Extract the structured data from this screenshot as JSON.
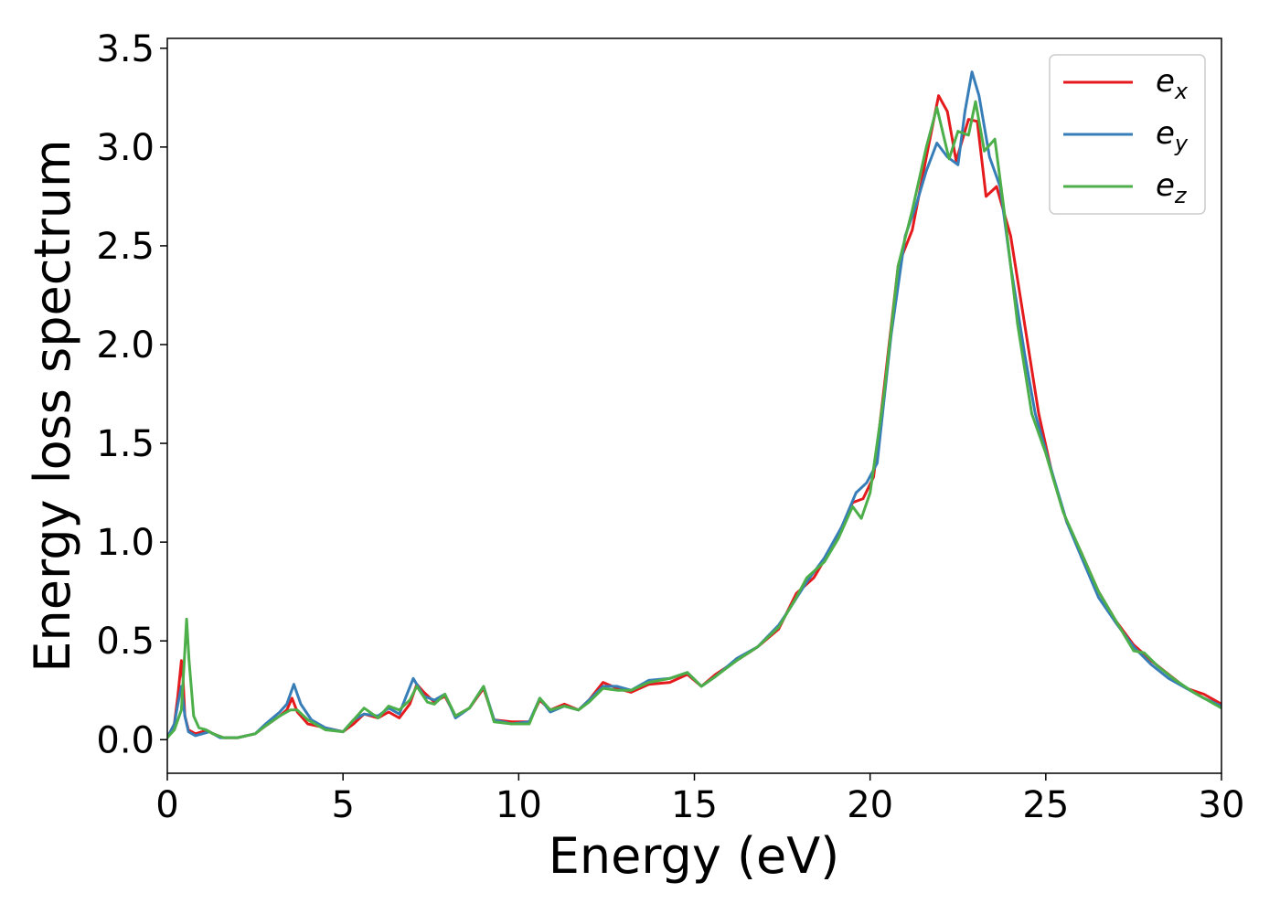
{
  "chart_data": {
    "type": "line",
    "xlabel": "Energy (eV)",
    "ylabel": "Energy loss spectrum",
    "xlim": [
      0,
      30
    ],
    "ylim": [
      -0.17,
      3.55
    ],
    "x_ticks": [
      0,
      5,
      10,
      15,
      20,
      25,
      30
    ],
    "y_ticks": [
      0.0,
      0.5,
      1.0,
      1.5,
      2.0,
      2.5,
      3.0,
      3.5
    ],
    "x_tick_labels": [
      "0",
      "5",
      "10",
      "15",
      "20",
      "25",
      "30"
    ],
    "y_tick_labels": [
      "0.0",
      "0.5",
      "1.0",
      "1.5",
      "2.0",
      "2.5",
      "3.0",
      "3.5"
    ],
    "grid": false,
    "legend_position": "top-right",
    "series": [
      {
        "name": "e_x",
        "label_main": "e",
        "label_sub": "x",
        "color": "#e41a1c",
        "points": [
          [
            0,
            0.01
          ],
          [
            0.2,
            0.08
          ],
          [
            0.3,
            0.22
          ],
          [
            0.4,
            0.4
          ],
          [
            0.45,
            0.3
          ],
          [
            0.5,
            0.12
          ],
          [
            0.6,
            0.05
          ],
          [
            0.8,
            0.03
          ],
          [
            1.0,
            0.04
          ],
          [
            1.1,
            0.05
          ],
          [
            1.3,
            0.03
          ],
          [
            1.6,
            0.01
          ],
          [
            2.0,
            0.01
          ],
          [
            2.5,
            0.03
          ],
          [
            2.8,
            0.07
          ],
          [
            3.2,
            0.12
          ],
          [
            3.4,
            0.15
          ],
          [
            3.55,
            0.21
          ],
          [
            3.7,
            0.14
          ],
          [
            4.0,
            0.08
          ],
          [
            4.5,
            0.06
          ],
          [
            5.0,
            0.04
          ],
          [
            5.3,
            0.08
          ],
          [
            5.6,
            0.13
          ],
          [
            6.0,
            0.11
          ],
          [
            6.3,
            0.14
          ],
          [
            6.6,
            0.11
          ],
          [
            6.9,
            0.18
          ],
          [
            7.1,
            0.28
          ],
          [
            7.3,
            0.24
          ],
          [
            7.6,
            0.19
          ],
          [
            7.9,
            0.22
          ],
          [
            8.2,
            0.12
          ],
          [
            8.6,
            0.16
          ],
          [
            9.0,
            0.26
          ],
          [
            9.3,
            0.1
          ],
          [
            9.8,
            0.09
          ],
          [
            10.3,
            0.09
          ],
          [
            10.6,
            0.2
          ],
          [
            10.9,
            0.15
          ],
          [
            11.3,
            0.18
          ],
          [
            11.7,
            0.15
          ],
          [
            12.0,
            0.2
          ],
          [
            12.4,
            0.29
          ],
          [
            12.8,
            0.26
          ],
          [
            13.2,
            0.24
          ],
          [
            13.7,
            0.28
          ],
          [
            14.3,
            0.29
          ],
          [
            14.8,
            0.33
          ],
          [
            15.2,
            0.27
          ],
          [
            15.6,
            0.33
          ],
          [
            16.2,
            0.4
          ],
          [
            16.8,
            0.47
          ],
          [
            17.4,
            0.56
          ],
          [
            17.9,
            0.74
          ],
          [
            18.4,
            0.82
          ],
          [
            19.0,
            1.0
          ],
          [
            19.5,
            1.2
          ],
          [
            19.8,
            1.22
          ],
          [
            20.1,
            1.33
          ],
          [
            20.4,
            1.78
          ],
          [
            20.8,
            2.4
          ],
          [
            21.2,
            2.58
          ],
          [
            21.6,
            2.95
          ],
          [
            21.95,
            3.26
          ],
          [
            22.2,
            3.18
          ],
          [
            22.45,
            2.93
          ],
          [
            22.8,
            3.14
          ],
          [
            23.05,
            3.13
          ],
          [
            23.3,
            2.75
          ],
          [
            23.6,
            2.8
          ],
          [
            24.0,
            2.55
          ],
          [
            24.4,
            2.1
          ],
          [
            24.8,
            1.65
          ],
          [
            25.2,
            1.33
          ],
          [
            25.6,
            1.1
          ],
          [
            26.0,
            0.95
          ],
          [
            26.5,
            0.75
          ],
          [
            27.0,
            0.6
          ],
          [
            27.5,
            0.48
          ],
          [
            28.0,
            0.4
          ],
          [
            28.5,
            0.33
          ],
          [
            29.0,
            0.26
          ],
          [
            29.5,
            0.23
          ],
          [
            30.0,
            0.18
          ]
        ]
      },
      {
        "name": "e_y",
        "label_main": "e",
        "label_sub": "y",
        "color": "#377eb8",
        "points": [
          [
            0,
            0.01
          ],
          [
            0.2,
            0.08
          ],
          [
            0.3,
            0.18
          ],
          [
            0.4,
            0.27
          ],
          [
            0.5,
            0.12
          ],
          [
            0.6,
            0.04
          ],
          [
            0.8,
            0.02
          ],
          [
            1.0,
            0.03
          ],
          [
            1.2,
            0.04
          ],
          [
            1.5,
            0.01
          ],
          [
            2.0,
            0.01
          ],
          [
            2.5,
            0.03
          ],
          [
            2.8,
            0.08
          ],
          [
            3.2,
            0.14
          ],
          [
            3.4,
            0.18
          ],
          [
            3.6,
            0.28
          ],
          [
            3.8,
            0.18
          ],
          [
            4.1,
            0.1
          ],
          [
            4.5,
            0.06
          ],
          [
            5.0,
            0.04
          ],
          [
            5.3,
            0.1
          ],
          [
            5.6,
            0.13
          ],
          [
            6.0,
            0.12
          ],
          [
            6.3,
            0.16
          ],
          [
            6.6,
            0.13
          ],
          [
            6.8,
            0.22
          ],
          [
            7.0,
            0.31
          ],
          [
            7.3,
            0.22
          ],
          [
            7.6,
            0.2
          ],
          [
            7.9,
            0.23
          ],
          [
            8.2,
            0.11
          ],
          [
            8.6,
            0.16
          ],
          [
            9.0,
            0.27
          ],
          [
            9.3,
            0.1
          ],
          [
            9.8,
            0.08
          ],
          [
            10.3,
            0.09
          ],
          [
            10.6,
            0.21
          ],
          [
            10.9,
            0.14
          ],
          [
            11.3,
            0.17
          ],
          [
            11.7,
            0.15
          ],
          [
            12.0,
            0.2
          ],
          [
            12.4,
            0.27
          ],
          [
            12.8,
            0.27
          ],
          [
            13.2,
            0.25
          ],
          [
            13.7,
            0.3
          ],
          [
            14.3,
            0.31
          ],
          [
            14.8,
            0.34
          ],
          [
            15.2,
            0.27
          ],
          [
            15.6,
            0.32
          ],
          [
            16.2,
            0.41
          ],
          [
            16.8,
            0.47
          ],
          [
            17.4,
            0.58
          ],
          [
            17.7,
            0.66
          ],
          [
            18.2,
            0.8
          ],
          [
            18.7,
            0.92
          ],
          [
            19.2,
            1.08
          ],
          [
            19.6,
            1.25
          ],
          [
            19.9,
            1.3
          ],
          [
            20.2,
            1.4
          ],
          [
            20.6,
            2.05
          ],
          [
            21.0,
            2.55
          ],
          [
            21.3,
            2.7
          ],
          [
            21.6,
            2.88
          ],
          [
            21.9,
            3.02
          ],
          [
            22.2,
            2.95
          ],
          [
            22.5,
            2.91
          ],
          [
            22.7,
            3.18
          ],
          [
            22.9,
            3.38
          ],
          [
            23.1,
            3.26
          ],
          [
            23.4,
            2.95
          ],
          [
            23.7,
            2.8
          ],
          [
            24.0,
            2.4
          ],
          [
            24.4,
            1.95
          ],
          [
            24.7,
            1.65
          ],
          [
            25.1,
            1.4
          ],
          [
            25.6,
            1.1
          ],
          [
            26.0,
            0.93
          ],
          [
            26.5,
            0.72
          ],
          [
            27.0,
            0.59
          ],
          [
            27.5,
            0.47
          ],
          [
            28.0,
            0.38
          ],
          [
            28.5,
            0.31
          ],
          [
            29.0,
            0.26
          ],
          [
            29.5,
            0.21
          ],
          [
            30.0,
            0.17
          ]
        ]
      },
      {
        "name": "e_z",
        "label_main": "e",
        "label_sub": "z",
        "color": "#4daf4a",
        "points": [
          [
            0,
            0.01
          ],
          [
            0.2,
            0.05
          ],
          [
            0.4,
            0.15
          ],
          [
            0.5,
            0.45
          ],
          [
            0.55,
            0.61
          ],
          [
            0.62,
            0.4
          ],
          [
            0.75,
            0.12
          ],
          [
            0.9,
            0.06
          ],
          [
            1.1,
            0.05
          ],
          [
            1.3,
            0.03
          ],
          [
            1.6,
            0.01
          ],
          [
            2.0,
            0.01
          ],
          [
            2.5,
            0.03
          ],
          [
            2.8,
            0.07
          ],
          [
            3.2,
            0.12
          ],
          [
            3.5,
            0.15
          ],
          [
            3.7,
            0.15
          ],
          [
            4.0,
            0.1
          ],
          [
            4.5,
            0.05
          ],
          [
            5.0,
            0.04
          ],
          [
            5.3,
            0.1
          ],
          [
            5.6,
            0.16
          ],
          [
            6.0,
            0.11
          ],
          [
            6.3,
            0.17
          ],
          [
            6.6,
            0.15
          ],
          [
            6.9,
            0.2
          ],
          [
            7.1,
            0.27
          ],
          [
            7.4,
            0.19
          ],
          [
            7.6,
            0.18
          ],
          [
            7.9,
            0.23
          ],
          [
            8.2,
            0.12
          ],
          [
            8.6,
            0.16
          ],
          [
            9.0,
            0.27
          ],
          [
            9.3,
            0.09
          ],
          [
            9.8,
            0.08
          ],
          [
            10.3,
            0.08
          ],
          [
            10.6,
            0.21
          ],
          [
            10.9,
            0.15
          ],
          [
            11.3,
            0.17
          ],
          [
            11.7,
            0.15
          ],
          [
            12.0,
            0.19
          ],
          [
            12.4,
            0.26
          ],
          [
            12.8,
            0.25
          ],
          [
            13.2,
            0.25
          ],
          [
            13.7,
            0.29
          ],
          [
            14.3,
            0.31
          ],
          [
            14.8,
            0.34
          ],
          [
            15.2,
            0.27
          ],
          [
            15.6,
            0.32
          ],
          [
            16.2,
            0.4
          ],
          [
            16.8,
            0.47
          ],
          [
            17.4,
            0.57
          ],
          [
            17.9,
            0.72
          ],
          [
            18.2,
            0.82
          ],
          [
            18.7,
            0.9
          ],
          [
            19.1,
            1.02
          ],
          [
            19.5,
            1.18
          ],
          [
            19.75,
            1.12
          ],
          [
            20.0,
            1.25
          ],
          [
            20.4,
            1.75
          ],
          [
            20.8,
            2.4
          ],
          [
            21.2,
            2.68
          ],
          [
            21.6,
            3.0
          ],
          [
            21.9,
            3.2
          ],
          [
            22.1,
            3.05
          ],
          [
            22.25,
            2.94
          ],
          [
            22.5,
            3.08
          ],
          [
            22.8,
            3.06
          ],
          [
            23.0,
            3.23
          ],
          [
            23.25,
            2.98
          ],
          [
            23.55,
            3.04
          ],
          [
            23.8,
            2.7
          ],
          [
            24.2,
            2.1
          ],
          [
            24.6,
            1.65
          ],
          [
            25.0,
            1.45
          ],
          [
            25.5,
            1.15
          ],
          [
            26.0,
            0.95
          ],
          [
            26.5,
            0.75
          ],
          [
            27.0,
            0.6
          ],
          [
            27.5,
            0.45
          ],
          [
            27.8,
            0.44
          ],
          [
            28.2,
            0.37
          ],
          [
            28.7,
            0.3
          ],
          [
            29.2,
            0.24
          ],
          [
            29.6,
            0.2
          ],
          [
            30.0,
            0.16
          ]
        ]
      }
    ]
  }
}
